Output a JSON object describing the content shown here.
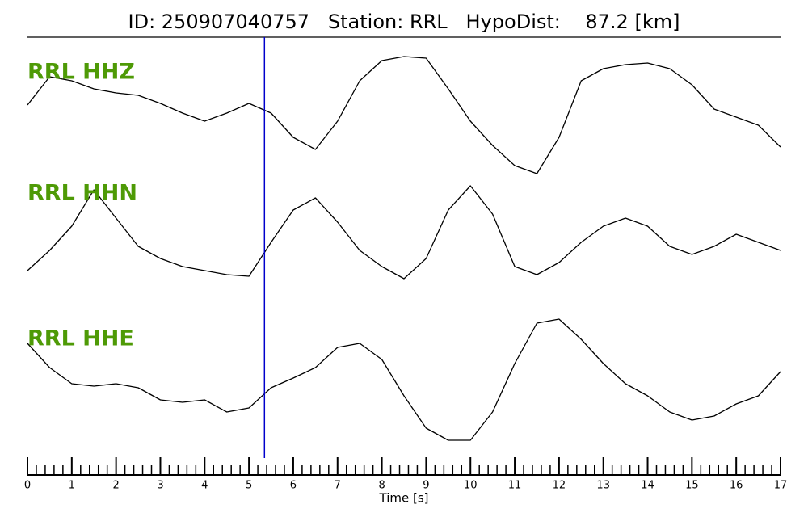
{
  "chart_data": {
    "type": "line",
    "title": "ID: 250907040757   Station: RRL   HypoDist:    87.2 [km]",
    "xlabel": "Time [s]",
    "x": [
      0,
      0.5,
      1,
      1.5,
      2,
      2.5,
      3,
      3.5,
      4,
      4.5,
      5,
      5.5,
      6,
      6.5,
      7,
      7.5,
      8,
      8.5,
      9,
      9.5,
      10,
      10.5,
      11,
      11.5,
      12,
      12.5,
      13,
      13.5,
      14,
      14.5,
      15,
      15.5,
      16,
      16.5,
      17
    ],
    "xlim": [
      0,
      17
    ],
    "xticks": [
      0,
      1,
      2,
      3,
      4,
      5,
      6,
      7,
      8,
      9,
      10,
      11,
      12,
      13,
      14,
      15,
      16,
      17
    ],
    "xminorticks": [
      0.2,
      0.4,
      0.6,
      0.8,
      1.2,
      1.4,
      1.6,
      1.8,
      2.2,
      2.4,
      2.6,
      2.8,
      3.2,
      3.4,
      3.6,
      3.8,
      4.2,
      4.4,
      4.6,
      4.8,
      5.2,
      5.4,
      5.6,
      5.8,
      6.2,
      6.4,
      6.6,
      6.8,
      7.2,
      7.4,
      7.6,
      7.8,
      8.2,
      8.4,
      8.6,
      8.8,
      9.2,
      9.4,
      9.6,
      9.8,
      10.2,
      10.4,
      10.6,
      10.8,
      11.2,
      11.4,
      11.6,
      11.8,
      12.2,
      12.4,
      12.6,
      12.8,
      13.2,
      13.4,
      13.6,
      13.8,
      14.2,
      14.4,
      14.6,
      14.8,
      15.2,
      15.4,
      15.6,
      15.8,
      16.2,
      16.4,
      16.6,
      16.8
    ],
    "vline": {
      "x": 5.35,
      "color": "#0000cc"
    },
    "label_color": "#4e9a06",
    "series": [
      {
        "name": "RRL HHZ",
        "color": "#000000",
        "ylim": [
          -80,
          80
        ],
        "values": [
          10,
          45,
          40,
          30,
          25,
          22,
          12,
          0,
          -10,
          0,
          12,
          0,
          -30,
          -45,
          -10,
          40,
          65,
          70,
          68,
          30,
          -10,
          -40,
          -65,
          -75,
          -30,
          40,
          55,
          60,
          62,
          55,
          35,
          5,
          -5,
          -15,
          -42
        ]
      },
      {
        "name": "RRL HHN",
        "color": "#000000",
        "ylim": [
          -80,
          80
        ],
        "values": [
          -45,
          -20,
          10,
          55,
          20,
          -15,
          -30,
          -40,
          -45,
          -50,
          -52,
          -10,
          30,
          45,
          15,
          -20,
          -40,
          -55,
          -30,
          30,
          60,
          25,
          -40,
          -50,
          -35,
          -10,
          10,
          20,
          10,
          -15,
          -25,
          -15,
          0,
          -10,
          -20
        ]
      },
      {
        "name": "RRL HHE",
        "color": "#000000",
        "ylim": [
          -80,
          80
        ],
        "values": [
          45,
          15,
          -5,
          -8,
          -5,
          -10,
          -25,
          -28,
          -25,
          -40,
          -35,
          -10,
          2,
          15,
          40,
          45,
          25,
          -20,
          -60,
          -75,
          -75,
          -40,
          20,
          70,
          75,
          50,
          20,
          -5,
          -20,
          -40,
          -50,
          -45,
          -30,
          -20,
          10
        ]
      }
    ]
  }
}
